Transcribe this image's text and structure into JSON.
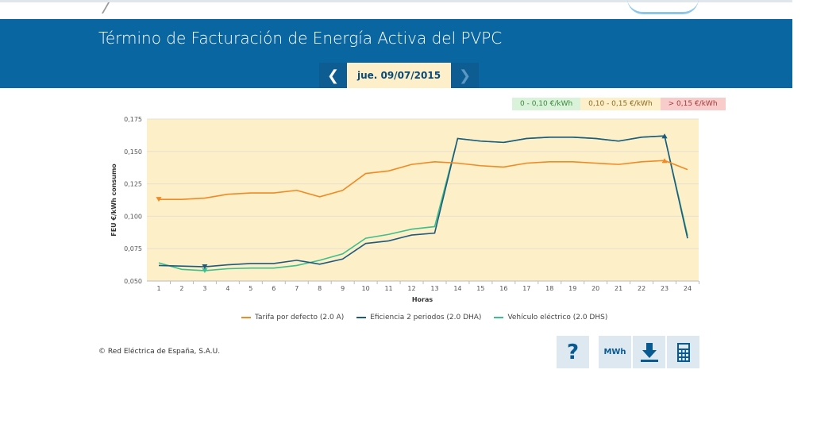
{
  "header": {
    "title": "Término de Facturación de Energía Activa del PVPC",
    "date": "jue. 09/07/2015",
    "prev_icon": "chevron-left-icon",
    "next_icon": "chevron-right-icon",
    "accent": "#0a66a0"
  },
  "ranges": [
    {
      "label": "0 - 0,10 €/kWh",
      "color": "#d9f2d9"
    },
    {
      "label": "0,10 - 0,15 €/kWh",
      "color": "#fcefc9"
    },
    {
      "label": "> 0,15 €/kWh",
      "color": "#f9cccc"
    }
  ],
  "chart_data": {
    "type": "line",
    "xlabel": "Horas",
    "ylabel": "FEU €/kWh consumo",
    "ylim": [
      0.05,
      0.175
    ],
    "yticks": [
      "0,050",
      "0,075",
      "0,100",
      "0,125",
      "0,150",
      "0,175"
    ],
    "x": [
      1,
      2,
      3,
      4,
      5,
      6,
      7,
      8,
      9,
      10,
      11,
      12,
      13,
      14,
      15,
      16,
      17,
      18,
      19,
      20,
      21,
      22,
      23,
      24
    ],
    "grid": true,
    "legend": "bottom",
    "series": [
      {
        "name": "Tarifa por defecto (2.0 A)",
        "color": "#f08a24",
        "values": [
          0.113,
          0.113,
          0.114,
          0.117,
          0.118,
          0.118,
          0.12,
          0.115,
          0.12,
          0.133,
          0.135,
          0.14,
          0.142,
          0.141,
          0.139,
          0.138,
          0.141,
          0.142,
          0.142,
          0.141,
          0.14,
          0.142,
          0.143,
          0.136
        ]
      },
      {
        "name": "Eficiencia 2 periodos (2.0 DHA)",
        "color": "#1d5a7e",
        "values": [
          0.062,
          0.0615,
          0.061,
          0.0625,
          0.0635,
          0.0635,
          0.066,
          0.063,
          0.067,
          0.079,
          0.081,
          0.0855,
          0.087,
          0.16,
          0.158,
          0.157,
          0.16,
          0.161,
          0.161,
          0.16,
          0.158,
          0.161,
          0.162,
          0.083
        ]
      },
      {
        "name": "Vehículo eléctrico (2.0 DHS)",
        "color": "#3cbf8c",
        "values": [
          0.064,
          0.059,
          0.058,
          0.0595,
          0.06,
          0.06,
          0.062,
          0.066,
          0.071,
          0.083,
          0.086,
          0.09,
          0.092,
          0.16,
          0.158,
          0.157,
          0.16,
          0.161,
          0.161,
          0.16,
          0.158,
          0.161,
          0.162,
          0.085
        ]
      }
    ]
  },
  "footer": {
    "copyright": "© Red Eléctrica de España, S.A.U.",
    "help": "?",
    "mwh": "MWh",
    "download_icon": "download-icon",
    "calculator_icon": "calculator-icon"
  }
}
